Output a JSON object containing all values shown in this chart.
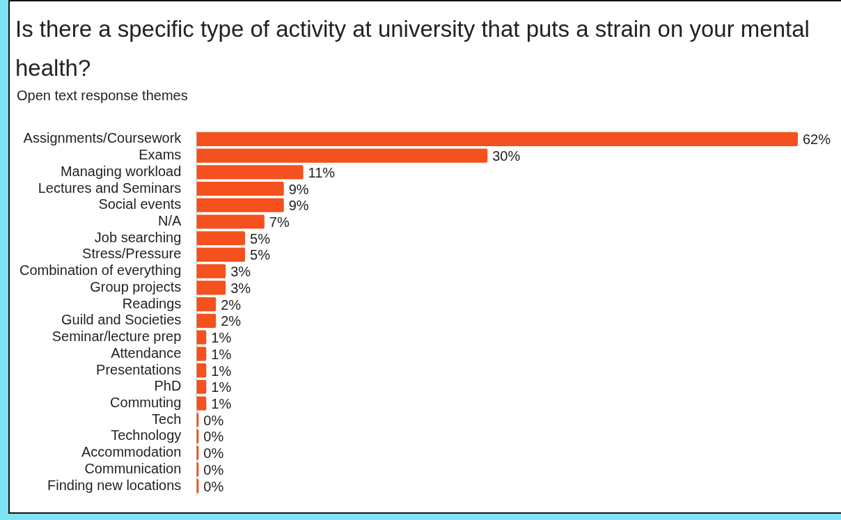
{
  "chart_data": {
    "type": "bar",
    "orientation": "horizontal",
    "title": "Is there a specific type of activity at university that puts a strain on your mental health?",
    "subtitle": "Open text response themes",
    "categories": [
      "Assignments/Coursework",
      "Exams",
      "Managing workload",
      "Lectures and Seminars",
      "Social events",
      "N/A",
      "Job searching",
      "Stress/Pressure",
      "Combination of everything",
      "Group projects",
      "Readings",
      "Guild and Societies",
      "Seminar/lecture prep",
      "Attendance",
      "Presentations",
      "PhD",
      "Commuting",
      "Tech",
      "Technology",
      "Accommodation",
      "Communication",
      "Finding new locations"
    ],
    "values": [
      62,
      30,
      11,
      9,
      9,
      7,
      5,
      5,
      3,
      3,
      2,
      2,
      1,
      1,
      1,
      1,
      1,
      0,
      0,
      0,
      0,
      0
    ],
    "value_labels": [
      "62%",
      "30%",
      "11%",
      "9%",
      "9%",
      "7%",
      "5%",
      "5%",
      "3%",
      "3%",
      "2%",
      "2%",
      "1%",
      "1%",
      "1%",
      "1%",
      "1%",
      "0%",
      "0%",
      "0%",
      "0%",
      "0%"
    ],
    "color": "#f4511e",
    "legend": false
  }
}
